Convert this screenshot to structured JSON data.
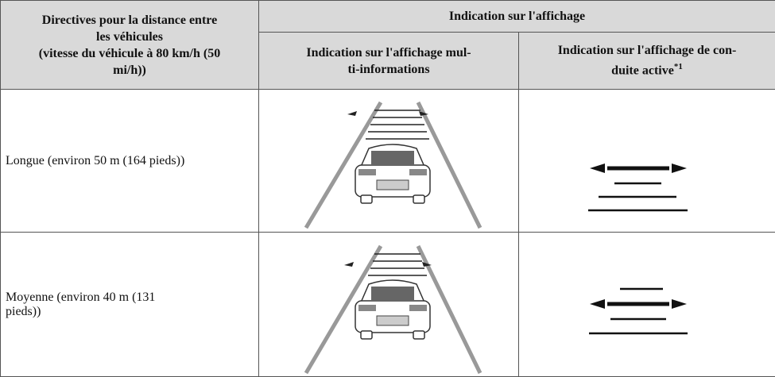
{
  "table": {
    "header": {
      "col1": [
        "Directives pour la distance entre",
        "les véhicules",
        "(vitesse du véhicule à 80 km/h (50",
        "mi/h))"
      ],
      "group": "Indication sur l'affichage",
      "col2": [
        "Indication sur l'affichage mul-",
        "ti-informations"
      ],
      "col3": [
        "Indication sur l'affichage de con-",
        "duite active",
        "*1"
      ]
    },
    "rows": [
      [
        "Longue (environ 50 m (164 pieds))"
      ],
      [
        "Moyenne (environ 40 m (131",
        "pieds))"
      ]
    ]
  }
}
